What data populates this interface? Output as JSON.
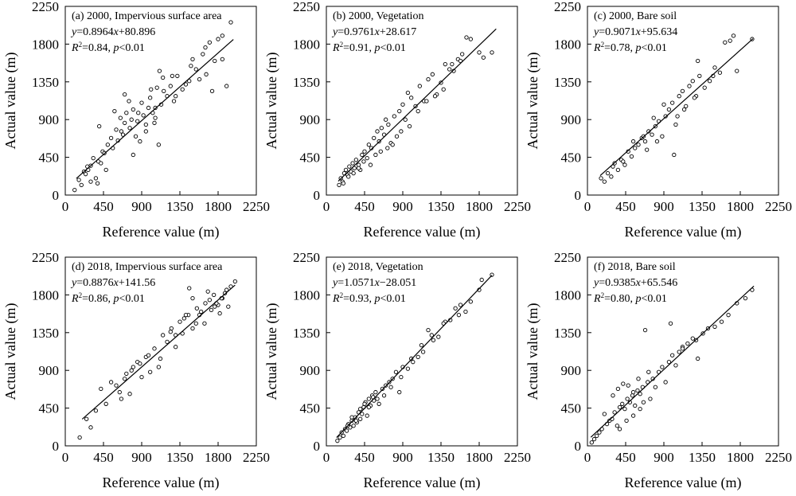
{
  "chart_data": [
    {
      "type": "scatter",
      "panel_label": "(a) 2000, Impervious surface area",
      "equation": "y=0.8964x+80.896",
      "r2_text": "R2=0.84, p<0.01",
      "xlabel": "Reference value (m)",
      "ylabel": "Actual value (m)",
      "xlim": [
        0,
        2250
      ],
      "ylim": [
        0,
        2250
      ],
      "xticks": [
        "0",
        "450",
        "900",
        "1350",
        "1800",
        "2250"
      ],
      "yticks": [
        "0",
        "450",
        "900",
        "1350",
        "1800",
        "2250"
      ],
      "fit": {
        "slope": 0.8964,
        "intercept": 80.896,
        "x_range": [
          130,
          1980
        ]
      },
      "points": {
        "x": [
          110,
          160,
          190,
          220,
          240,
          270,
          300,
          330,
          360,
          390,
          400,
          420,
          440,
          480,
          500,
          540,
          560,
          600,
          620,
          650,
          680,
          700,
          720,
          750,
          760,
          780,
          800,
          830,
          850,
          880,
          900,
          920,
          950,
          980,
          1000,
          1030,
          1060,
          1080,
          1100,
          1130,
          1160,
          1200,
          1240,
          1280,
          1320,
          1380,
          1420,
          1480,
          1540,
          1580,
          1620,
          1660,
          1700,
          1730,
          1760,
          1800,
          1850,
          1900,
          1950,
          950,
          1050,
          700,
          580,
          800,
          1150,
          1300,
          380,
          300,
          1500,
          1650,
          1850,
          260,
          460,
          660,
          860,
          1060,
          1260,
          1460,
          1010,
          1110
        ],
        "y": [
          60,
          180,
          120,
          280,
          250,
          300,
          350,
          440,
          200,
          400,
          820,
          380,
          520,
          300,
          600,
          680,
          560,
          780,
          650,
          920,
          720,
          860,
          980,
          1120,
          800,
          900,
          1020,
          700,
          880,
          640,
          1100,
          950,
          840,
          1040,
          1160,
          980,
          920,
          1280,
          600,
          1080,
          1240,
          1180,
          1300,
          1120,
          1420,
          1260,
          1320,
          1540,
          1500,
          1380,
          1680,
          1440,
          1820,
          1240,
          1600,
          1860,
          1620,
          1300,
          2060,
          760,
          860,
          1200,
          1000,
          480,
          1400,
          1180,
          140,
          160,
          1620,
          1760,
          1900,
          340,
          500,
          760,
          980,
          1040,
          1420,
          1360,
          1260,
          1480
        ]
      }
    },
    {
      "type": "scatter",
      "panel_label": "(b) 2000, Vegetation",
      "equation": "y=0.9761x+28.617",
      "r2_text": "R2=0.91, p<0.01",
      "xlabel": "Reference value (m)",
      "ylabel": "Actual value (m)",
      "xlim": [
        0,
        2250
      ],
      "ylim": [
        0,
        2250
      ],
      "xticks": [
        "0",
        "450",
        "900",
        "1350",
        "1800",
        "2250"
      ],
      "yticks": [
        "0",
        "450",
        "900",
        "1350",
        "1800",
        "2250"
      ],
      "fit": {
        "slope": 0.9761,
        "intercept": 28.617,
        "x_range": [
          140,
          2000
        ]
      },
      "points": {
        "x": [
          150,
          170,
          190,
          210,
          230,
          250,
          270,
          290,
          310,
          330,
          350,
          380,
          400,
          420,
          450,
          480,
          500,
          530,
          560,
          600,
          620,
          650,
          680,
          700,
          730,
          760,
          800,
          830,
          860,
          900,
          930,
          960,
          1000,
          1050,
          1100,
          1150,
          1200,
          1250,
          1300,
          1350,
          1400,
          1450,
          1500,
          1550,
          1600,
          1650,
          1700,
          1800,
          1850,
          1950,
          200,
          260,
          320,
          380,
          440,
          520,
          580,
          640,
          720,
          780,
          880,
          980,
          1080,
          1180,
          1280,
          1380,
          1480,
          1580
        ],
        "y": [
          120,
          200,
          160,
          260,
          300,
          240,
          340,
          280,
          380,
          320,
          420,
          360,
          300,
          480,
          520,
          440,
          600,
          560,
          680,
          760,
          640,
          800,
          720,
          900,
          840,
          620,
          940,
          700,
          1000,
          1080,
          900,
          1220,
          1160,
          1060,
          1300,
          1120,
          1380,
          1440,
          1200,
          1340,
          1560,
          1500,
          1480,
          1620,
          1680,
          1880,
          1860,
          1700,
          1640,
          1700,
          140,
          220,
          260,
          320,
          400,
          360,
          480,
          520,
          560,
          600,
          760,
          820,
          1000,
          1120,
          1180,
          1260,
          1560,
          1600
        ]
      }
    },
    {
      "type": "scatter",
      "panel_label": "(c) 2000, Bare soil",
      "equation": "y=0.9071x+95.634",
      "r2_text": "R2=0.78, p<0.01",
      "xlabel": "Reference value (m)",
      "ylabel": "Actual value (m)",
      "xlim": [
        0,
        2250
      ],
      "ylim": [
        0,
        2250
      ],
      "xticks": [
        "0",
        "450",
        "900",
        "1350",
        "1800",
        "2250"
      ],
      "yticks": [
        "0",
        "450",
        "900",
        "1350",
        "1800",
        "2250"
      ],
      "fit": {
        "slope": 0.9071,
        "intercept": 95.634,
        "x_range": [
          150,
          1950
        ]
      },
      "points": {
        "x": [
          160,
          200,
          240,
          280,
          320,
          360,
          400,
          440,
          480,
          520,
          560,
          600,
          640,
          680,
          720,
          760,
          800,
          840,
          880,
          920,
          960,
          1000,
          1040,
          1080,
          1120,
          1160,
          1200,
          1240,
          1280,
          1320,
          1380,
          1440,
          1500,
          1560,
          1620,
          1680,
          1720,
          1760,
          1940,
          300,
          420,
          540,
          660,
          780,
          900,
          1020,
          1140,
          1260,
          700,
          820,
          1060,
          1300,
          1480
        ],
        "y": [
          200,
          160,
          260,
          220,
          380,
          300,
          420,
          360,
          520,
          460,
          560,
          600,
          680,
          640,
          760,
          720,
          820,
          880,
          700,
          940,
          1020,
          1100,
          840,
          1180,
          1240,
          1060,
          1300,
          1360,
          1180,
          1420,
          1280,
          1360,
          1520,
          1460,
          1820,
          1840,
          1900,
          1480,
          1860,
          340,
          400,
          640,
          700,
          920,
          1080,
          480,
          1020,
          1160,
          540,
          640,
          940,
          1600,
          1420
        ]
      }
    },
    {
      "type": "scatter",
      "panel_label": "(d) 2018, Impervious surface area",
      "equation": "y=0.8876x+141.56",
      "r2_text": "R2=0.86, p<0.01",
      "xlabel": "Reference value (m)",
      "ylabel": "Actual value (m)",
      "xlim": [
        0,
        2250
      ],
      "ylim": [
        0,
        2250
      ],
      "xticks": [
        "0",
        "450",
        "900",
        "1350",
        "1800",
        "2250"
      ],
      "yticks": [
        "0",
        "450",
        "900",
        "1350",
        "1800",
        "2250"
      ],
      "fit": {
        "slope": 0.8876,
        "intercept": 141.56,
        "x_range": [
          200,
          2000
        ]
      },
      "points": {
        "x": [
          170,
          250,
          300,
          360,
          420,
          480,
          540,
          600,
          660,
          720,
          760,
          800,
          850,
          900,
          950,
          1000,
          1050,
          1100,
          1150,
          1200,
          1250,
          1300,
          1350,
          1400,
          1450,
          1500,
          1550,
          1600,
          1650,
          1700,
          1750,
          1800,
          1850,
          1900,
          1950,
          2000,
          1580,
          1640,
          1720,
          1780,
          1820,
          1880,
          1460,
          1380,
          1300,
          1240,
          1120,
          980,
          880,
          780,
          700,
          640,
          1680,
          1760,
          1840,
          1920,
          1500,
          1420,
          1540
        ],
        "y": [
          100,
          320,
          220,
          420,
          680,
          500,
          760,
          720,
          560,
          860,
          620,
          940,
          1000,
          820,
          1060,
          880,
          1160,
          940,
          1320,
          1240,
          1400,
          1320,
          1480,
          1520,
          1560,
          1400,
          1640,
          1600,
          1700,
          1740,
          1800,
          1680,
          1760,
          1860,
          1900,
          1960,
          1560,
          1460,
          1620,
          1700,
          1580,
          1820,
          1880,
          1340,
          1180,
          1360,
          1040,
          1080,
          980,
          900,
          800,
          640,
          1840,
          1660,
          1760,
          1660,
          1760,
          1560,
          1460
        ]
      }
    },
    {
      "type": "scatter",
      "panel_label": "(e) 2018, Vegetation",
      "equation": "y=1.0571x−28.051",
      "r2_text": "R2=0.93, p<0.01",
      "xlabel": "Reference value (m)",
      "ylabel": "Actual value (m)",
      "xlim": [
        0,
        2250
      ],
      "ylim": [
        0,
        2250
      ],
      "xticks": [
        "0",
        "450",
        "900",
        "1350",
        "1800",
        "2250"
      ],
      "yticks": [
        "0",
        "450",
        "900",
        "1350",
        "1800",
        "2250"
      ],
      "fit": {
        "slope": 1.0571,
        "intercept": -28.051,
        "x_range": [
          120,
          1950
        ]
      },
      "points": {
        "x": [
          130,
          160,
          180,
          200,
          220,
          240,
          260,
          280,
          300,
          320,
          340,
          360,
          380,
          400,
          420,
          440,
          460,
          480,
          500,
          520,
          540,
          560,
          580,
          620,
          660,
          700,
          740,
          780,
          820,
          860,
          900,
          960,
          1020,
          1080,
          1140,
          1200,
          1260,
          1320,
          1400,
          1460,
          1520,
          1580,
          1640,
          1700,
          1800,
          1830,
          1950,
          250,
          300,
          350,
          400,
          450,
          500,
          550,
          600,
          680,
          760,
          880,
          1000,
          1120,
          1240,
          1380,
          1560
        ],
        "y": [
          60,
          100,
          160,
          120,
          200,
          180,
          260,
          220,
          300,
          240,
          340,
          280,
          400,
          320,
          380,
          460,
          520,
          360,
          560,
          480,
          600,
          540,
          640,
          500,
          680,
          720,
          760,
          800,
          880,
          640,
          940,
          920,
          1000,
          1060,
          1120,
          1380,
          1260,
          1300,
          1480,
          1500,
          1640,
          1680,
          1600,
          1720,
          1860,
          1980,
          2040,
          240,
          340,
          300,
          440,
          500,
          460,
          580,
          560,
          600,
          700,
          820,
          1040,
          1200,
          1320,
          1460,
          1560
        ]
      }
    },
    {
      "type": "scatter",
      "panel_label": "(f) 2018, Bare soil",
      "equation": "y=0.9385x+65.546",
      "r2_text": "R2=0.80, p<0.01",
      "xlabel": "Reference value (m)",
      "ylabel": "Actual value (m)",
      "xlim": [
        0,
        2250
      ],
      "ylim": [
        0,
        2250
      ],
      "xticks": [
        "0",
        "450",
        "900",
        "1350",
        "1800",
        "2250"
      ],
      "yticks": [
        "0",
        "450",
        "900",
        "1350",
        "1800",
        "2250"
      ],
      "fit": {
        "slope": 0.9385,
        "intercept": 65.546,
        "x_range": [
          40,
          1960
        ]
      },
      "points": {
        "x": [
          50,
          80,
          110,
          140,
          170,
          200,
          230,
          260,
          290,
          320,
          350,
          380,
          410,
          440,
          470,
          500,
          530,
          560,
          590,
          620,
          650,
          680,
          710,
          740,
          770,
          800,
          840,
          880,
          920,
          960,
          1000,
          1040,
          1080,
          1120,
          1180,
          1240,
          1300,
          1360,
          1420,
          1500,
          1580,
          1660,
          1760,
          1860,
          1940,
          300,
          360,
          420,
          480,
          540,
          600,
          660,
          720,
          380,
          460,
          540,
          620,
          980,
          1120,
          1280
        ],
        "y": [
          40,
          80,
          120,
          160,
          200,
          380,
          260,
          300,
          320,
          400,
          240,
          460,
          500,
          440,
          560,
          520,
          600,
          480,
          660,
          620,
          700,
          1380,
          760,
          560,
          800,
          700,
          880,
          940,
          760,
          1000,
          1080,
          960,
          1120,
          1180,
          1220,
          1280,
          1040,
          1340,
          1400,
          1420,
          1480,
          1560,
          1700,
          1760,
          1860,
          600,
          680,
          740,
          720,
          640,
          800,
          520,
          880,
          200,
          300,
          360,
          440,
          1460,
          1160,
          1260
        ]
      }
    }
  ]
}
